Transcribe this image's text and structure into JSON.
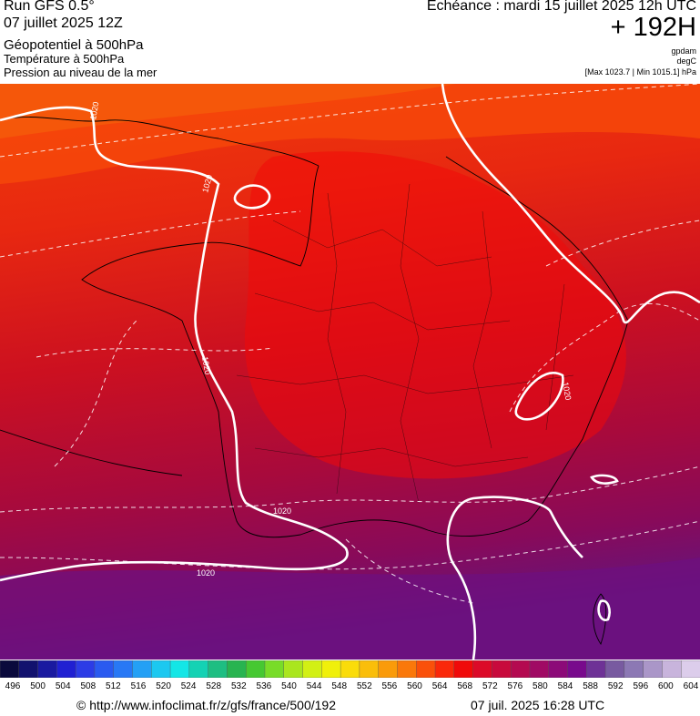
{
  "header": {
    "run": "Run GFS 0.5°",
    "run_date": "07 juillet 2025 12Z",
    "layer1": "Géopotentiel à 500hPa",
    "layer2": "Température à 500hPa",
    "layer3": "Pression au niveau de la mer",
    "echeance": "Echéance : mardi 15 juillet 2025 12h UTC",
    "lead": "+ 192H",
    "unit1": "gpdam",
    "unit2": "degC",
    "minmax": "[Max 1023.7 | Min 1015.1] hPa"
  },
  "isobar_label": "1020",
  "scale": {
    "values": [
      "496",
      "500",
      "504",
      "508",
      "512",
      "516",
      "520",
      "524",
      "528",
      "532",
      "536",
      "540",
      "544",
      "548",
      "552",
      "556",
      "560",
      "564",
      "568",
      "572",
      "576",
      "580",
      "584",
      "588",
      "592",
      "596",
      "600",
      "604"
    ],
    "colors": [
      "#0a0a3c",
      "#12126e",
      "#1a1aa0",
      "#2020d2",
      "#2c3ce6",
      "#2a5af0",
      "#2878f5",
      "#24a0f5",
      "#1cc8f0",
      "#14e6e6",
      "#14d2b4",
      "#1ebe82",
      "#28b450",
      "#46c832",
      "#78dc28",
      "#aae61e",
      "#d2f014",
      "#f0f00a",
      "#fadc0a",
      "#fabe0a",
      "#fa9b0a",
      "#fa780a",
      "#fa500a",
      "#fa280a",
      "#f00a0a",
      "#dc0a28",
      "#c80a3c",
      "#b40a50",
      "#a00a64",
      "#8c0a78",
      "#780a8c",
      "#6e3296",
      "#785aa0",
      "#8c78b4",
      "#aa96c8",
      "#c8b4dc",
      "#dccdeb"
    ],
    "count": 37
  },
  "footer": {
    "url": "© http://www.infoclimat.fr/z/gfs/france/500/192",
    "generated": "07 juil. 2025 16:28 UTC"
  }
}
